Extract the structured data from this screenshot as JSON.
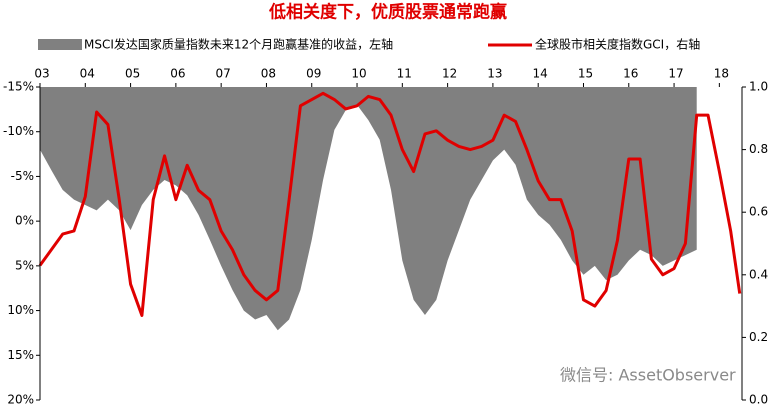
{
  "chart_data": {
    "type": "combo",
    "title": "低相关度下，优质股票通常跑赢",
    "watermark": "微信号: AssetObserver",
    "legend": "top",
    "invert_y": true,
    "xlim": [
      3,
      18.5
    ],
    "xticks": [
      {
        "value": 3,
        "label": "03"
      },
      {
        "value": 4,
        "label": "04"
      },
      {
        "value": 5,
        "label": "05"
      },
      {
        "value": 6,
        "label": "06"
      },
      {
        "value": 7,
        "label": "07"
      },
      {
        "value": 8,
        "label": "08"
      },
      {
        "value": 9,
        "label": "09"
      },
      10,
      11,
      12,
      13,
      14,
      15,
      16,
      17,
      18
    ],
    "ylim": [
      -15,
      20
    ],
    "yticks": [
      {
        "value": -15,
        "label": "-15%"
      },
      {
        "value": -10,
        "label": "-10%"
      },
      {
        "value": -5,
        "label": "-5%"
      },
      {
        "value": 0,
        "label": "0%"
      },
      {
        "value": 5,
        "label": "5%"
      },
      {
        "value": 10,
        "label": "10%"
      },
      {
        "value": 15,
        "label": "15%"
      },
      {
        "value": 20,
        "label": "20%"
      }
    ],
    "y2lim": [
      0,
      1
    ],
    "y2ticks": [
      {
        "value": 0,
        "label": "0.0"
      },
      0.2,
      0.4,
      0.6,
      0.8,
      {
        "value": 1,
        "label": "1.0"
      }
    ],
    "series": [
      {
        "name": "MSCI发达国家质量指数未来12个月跑赢基准的收益，左轴",
        "type": "area",
        "axis": "y",
        "color": "#808080",
        "x": [
          3,
          3.25,
          3.5,
          3.75,
          4,
          4.25,
          4.5,
          4.75,
          5,
          5.25,
          5.5,
          5.75,
          6,
          6.25,
          6.5,
          6.75,
          7,
          7.25,
          7.5,
          7.75,
          8,
          8.25,
          8.5,
          8.75,
          9,
          9.25,
          9.5,
          9.75,
          10,
          10.25,
          10.5,
          10.75,
          11,
          11.25,
          11.5,
          11.75,
          12,
          12.25,
          12.5,
          12.75,
          13,
          13.25,
          13.5,
          13.75,
          14,
          14.25,
          14.5,
          14.75,
          15,
          15.25,
          15.5,
          15.75,
          16,
          16.25,
          16.5,
          16.75,
          17,
          17.25,
          17.5
        ],
        "values": [
          -8,
          -5.7,
          -3.5,
          -2.4,
          -1.8,
          -1.2,
          -2.4,
          -1.2,
          1,
          -1.8,
          -3.5,
          -4.6,
          -4,
          -2.9,
          -0.7,
          2.1,
          5,
          7.7,
          10,
          11,
          10.5,
          12.2,
          11,
          7.7,
          2.1,
          -4.6,
          -10.2,
          -12.4,
          -13,
          -11.3,
          -9.1,
          -3.5,
          4.4,
          8.8,
          10.5,
          8.8,
          4.4,
          1,
          -2.4,
          -4.6,
          -6.8,
          -8,
          -6.3,
          -2.4,
          -0.7,
          0.4,
          2.1,
          4.4,
          6,
          5,
          6.6,
          6,
          4.4,
          3.2,
          3.8,
          5,
          4.4,
          3.8,
          3.2
        ]
      },
      {
        "name": "全球股市相关度指数GCI，右轴",
        "type": "line",
        "axis": "y2",
        "color": "#e00000",
        "x": [
          3,
          3.25,
          3.5,
          3.75,
          4,
          4.25,
          4.5,
          4.75,
          5,
          5.25,
          5.5,
          5.75,
          6,
          6.25,
          6.5,
          6.75,
          7,
          7.25,
          7.5,
          7.75,
          8,
          8.25,
          8.5,
          8.75,
          9,
          9.25,
          9.5,
          9.75,
          10,
          10.25,
          10.5,
          10.75,
          11,
          11.25,
          11.5,
          11.75,
          12,
          12.25,
          12.5,
          12.75,
          13,
          13.25,
          13.5,
          13.75,
          14,
          14.25,
          14.5,
          14.75,
          15,
          15.25,
          15.5,
          15.75,
          16,
          16.25,
          16.5,
          16.75,
          17,
          17.25,
          17.5,
          17.75,
          18,
          18.25,
          18.45
        ],
        "values": [
          0.43,
          0.48,
          0.53,
          0.54,
          0.65,
          0.92,
          0.88,
          0.64,
          0.37,
          0.27,
          0.64,
          0.78,
          0.64,
          0.75,
          0.67,
          0.64,
          0.54,
          0.48,
          0.4,
          0.35,
          0.32,
          0.35,
          0.64,
          0.94,
          0.96,
          0.98,
          0.96,
          0.93,
          0.94,
          0.97,
          0.96,
          0.91,
          0.8,
          0.73,
          0.85,
          0.86,
          0.83,
          0.81,
          0.8,
          0.81,
          0.83,
          0.91,
          0.89,
          0.8,
          0.7,
          0.64,
          0.64,
          0.54,
          0.32,
          0.3,
          0.35,
          0.51,
          0.77,
          0.77,
          0.45,
          0.4,
          0.42,
          0.5,
          0.91,
          0.91,
          0.73,
          0.54,
          0.34
        ]
      }
    ]
  }
}
